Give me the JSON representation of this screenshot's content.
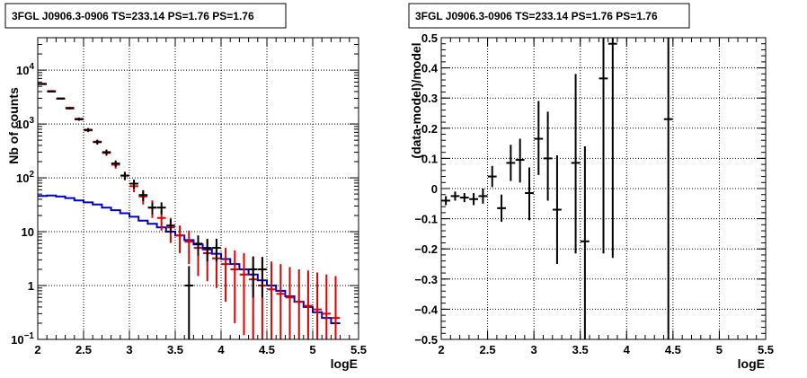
{
  "chart_data": [
    {
      "type": "step",
      "title": "3FGL J0906.3-0906 TS=233.14 PS=1.76 PS=1.76",
      "xlabel": "logE",
      "ylabel": "Nb of counts",
      "xlim": [
        2,
        5.5
      ],
      "ylim": [
        0.1,
        40000
      ],
      "yscale": "log",
      "x_ticks": [
        "2",
        "2.5",
        "3",
        "3.5",
        "4",
        "4.5",
        "5",
        "5.5"
      ],
      "y_ticks": [
        "10^{-1}",
        "1",
        "10",
        "10^{2}",
        "10^{3}",
        "10^{4}"
      ],
      "grid": true,
      "colors": {
        "data": "#000000",
        "model": "#dd0000",
        "component": "#0000cc"
      },
      "series": [
        {
          "role": "data",
          "style": "errorbar",
          "color": "#000000",
          "points": [
            {
              "x": 2.05,
              "y": 5500,
              "lo": 5350,
              "hi": 5650
            },
            {
              "x": 2.15,
              "y": 4000,
              "lo": 3870,
              "hi": 4130
            },
            {
              "x": 2.25,
              "y": 2950,
              "lo": 2840,
              "hi": 3060
            },
            {
              "x": 2.35,
              "y": 1950,
              "lo": 1860,
              "hi": 2040
            },
            {
              "x": 2.45,
              "y": 1220,
              "lo": 1150,
              "hi": 1290
            },
            {
              "x": 2.55,
              "y": 780,
              "lo": 720,
              "hi": 840
            },
            {
              "x": 2.65,
              "y": 460,
              "lo": 415,
              "hi": 505
            },
            {
              "x": 2.75,
              "y": 300,
              "lo": 265,
              "hi": 335
            },
            {
              "x": 2.85,
              "y": 185,
              "lo": 160,
              "hi": 210
            },
            {
              "x": 2.95,
              "y": 110,
              "lo": 92,
              "hi": 128
            },
            {
              "x": 3.05,
              "y": 78,
              "lo": 63,
              "hi": 93
            },
            {
              "x": 3.15,
              "y": 48,
              "lo": 37,
              "hi": 59
            },
            {
              "x": 3.25,
              "y": 28,
              "lo": 21,
              "hi": 35
            },
            {
              "x": 3.35,
              "y": 28,
              "lo": 21,
              "hi": 35
            },
            {
              "x": 3.45,
              "y": 13,
              "lo": 9.5,
              "hi": 17
            },
            {
              "x": 3.65,
              "y": 1,
              "lo": 0.1,
              "hi": 2.3
            },
            {
              "x": 3.75,
              "y": 6,
              "lo": 3.6,
              "hi": 8.5
            },
            {
              "x": 3.85,
              "y": 5,
              "lo": 2.8,
              "hi": 7.4
            },
            {
              "x": 3.95,
              "y": 5,
              "lo": 2.8,
              "hi": 7.4
            },
            {
              "x": 4.35,
              "y": 2,
              "lo": 0.6,
              "hi": 3.4
            },
            {
              "x": 4.45,
              "y": 2,
              "lo": 0.6,
              "hi": 3.4
            }
          ]
        },
        {
          "role": "model",
          "style": "errorbar",
          "color": "#dd0000",
          "points": [
            {
              "x": 2.05,
              "y": 5600,
              "lo": 5450,
              "hi": 5750
            },
            {
              "x": 2.15,
              "y": 4100,
              "lo": 3970,
              "hi": 4230
            },
            {
              "x": 2.25,
              "y": 3000,
              "lo": 2890,
              "hi": 3110
            },
            {
              "x": 2.35,
              "y": 2000,
              "lo": 1910,
              "hi": 2090
            },
            {
              "x": 2.45,
              "y": 1250,
              "lo": 1180,
              "hi": 1320
            },
            {
              "x": 2.55,
              "y": 760,
              "lo": 705,
              "hi": 815
            },
            {
              "x": 2.65,
              "y": 470,
              "lo": 427,
              "hi": 513
            },
            {
              "x": 2.75,
              "y": 290,
              "lo": 256,
              "hi": 324
            },
            {
              "x": 2.85,
              "y": 175,
              "lo": 149,
              "hi": 201
            },
            {
              "x": 2.95,
              "y": 110,
              "lo": 90,
              "hi": 130
            },
            {
              "x": 3.05,
              "y": 70,
              "lo": 54,
              "hi": 86
            },
            {
              "x": 3.15,
              "y": 45,
              "lo": 32,
              "hi": 58
            },
            {
              "x": 3.25,
              "y": 28,
              "lo": 18,
              "hi": 38
            },
            {
              "x": 3.35,
              "y": 18,
              "lo": 10.5,
              "hi": 25.5
            },
            {
              "x": 3.45,
              "y": 12,
              "lo": 6.2,
              "hi": 18
            },
            {
              "x": 3.55,
              "y": 8.5,
              "lo": 4,
              "hi": 13
            },
            {
              "x": 3.65,
              "y": 6.5,
              "lo": 2.5,
              "hi": 10.5
            },
            {
              "x": 3.75,
              "y": 5,
              "lo": 1.5,
              "hi": 8.5
            },
            {
              "x": 3.85,
              "y": 4,
              "lo": 1.2,
              "hi": 7
            },
            {
              "x": 3.95,
              "y": 3.2,
              "lo": 0.9,
              "hi": 6
            },
            {
              "x": 4.05,
              "y": 2.5,
              "lo": 0.5,
              "hi": 5
            },
            {
              "x": 4.15,
              "y": 2,
              "lo": 0.2,
              "hi": 4.5
            },
            {
              "x": 4.25,
              "y": 1.6,
              "lo": 0.12,
              "hi": 4
            },
            {
              "x": 4.35,
              "y": 1.3,
              "lo": 0.1,
              "hi": 3.5
            },
            {
              "x": 4.45,
              "y": 1,
              "lo": 0.1,
              "hi": 3
            },
            {
              "x": 4.55,
              "y": 0.85,
              "lo": 0.1,
              "hi": 2.8
            },
            {
              "x": 4.65,
              "y": 0.7,
              "lo": 0.1,
              "hi": 2.5
            },
            {
              "x": 4.75,
              "y": 0.6,
              "lo": 0.1,
              "hi": 2.2
            },
            {
              "x": 4.85,
              "y": 0.5,
              "lo": 0.1,
              "hi": 2.0
            },
            {
              "x": 4.95,
              "y": 0.42,
              "lo": 0.1,
              "hi": 1.9
            },
            {
              "x": 5.05,
              "y": 0.36,
              "lo": 0.1,
              "hi": 1.75
            },
            {
              "x": 5.15,
              "y": 0.3,
              "lo": 0.1,
              "hi": 1.6
            },
            {
              "x": 5.25,
              "y": 0.25,
              "lo": 0.1,
              "hi": 1.5
            }
          ]
        },
        {
          "role": "component",
          "style": "step",
          "color": "#0000cc",
          "edges": [
            2.0,
            2.1,
            2.2,
            2.3,
            2.4,
            2.5,
            2.6,
            2.7,
            2.8,
            2.9,
            3.0,
            3.1,
            3.2,
            3.3,
            3.4,
            3.5,
            3.6,
            3.7,
            3.8,
            3.9,
            4.0,
            4.1,
            4.2,
            4.3,
            4.4,
            4.5,
            4.6,
            4.7,
            4.8,
            4.9,
            5.0,
            5.1,
            5.2,
            5.3
          ],
          "values": [
            46,
            47,
            45,
            42,
            38,
            35,
            32,
            28,
            25,
            22,
            19,
            16,
            14,
            12,
            10,
            8.5,
            7,
            5.8,
            4.7,
            3.9,
            3.1,
            2.5,
            2.0,
            1.6,
            1.25,
            1.0,
            0.8,
            0.63,
            0.5,
            0.4,
            0.32,
            0.25,
            0.2
          ]
        }
      ]
    },
    {
      "type": "scatter",
      "title": "3FGL J0906.3-0906 TS=233.14 PS=1.76 PS=1.76",
      "xlabel": "logE",
      "ylabel": "(data-model)/model",
      "xlim": [
        2,
        5.5
      ],
      "ylim": [
        -0.5,
        0.5
      ],
      "x_ticks": [
        "2",
        "2.5",
        "3",
        "3.5",
        "4",
        "4.5",
        "5",
        "5.5"
      ],
      "y_ticks": [
        "−0.5",
        "−0.4",
        "−0.3",
        "−0.2",
        "−0.1",
        "0",
        "0.1",
        "0.2",
        "0.3",
        "0.4",
        "0.5"
      ],
      "grid": true,
      "points": [
        {
          "x": 2.05,
          "y": -0.04,
          "lo": -0.055,
          "hi": -0.025
        },
        {
          "x": 2.15,
          "y": -0.025,
          "lo": -0.04,
          "hi": -0.01
        },
        {
          "x": 2.25,
          "y": -0.03,
          "lo": -0.045,
          "hi": -0.015
        },
        {
          "x": 2.35,
          "y": -0.035,
          "lo": -0.055,
          "hi": -0.015
        },
        {
          "x": 2.45,
          "y": -0.025,
          "lo": -0.05,
          "hi": 0.0
        },
        {
          "x": 2.55,
          "y": 0.04,
          "lo": 0.005,
          "hi": 0.075
        },
        {
          "x": 2.65,
          "y": -0.065,
          "lo": -0.11,
          "hi": -0.02
        },
        {
          "x": 2.75,
          "y": 0.085,
          "lo": 0.025,
          "hi": 0.145
        },
        {
          "x": 2.85,
          "y": 0.095,
          "lo": 0.02,
          "hi": 0.165
        },
        {
          "x": 2.95,
          "y": -0.015,
          "lo": -0.105,
          "hi": 0.07
        },
        {
          "x": 3.05,
          "y": 0.165,
          "lo": 0.045,
          "hi": 0.29
        },
        {
          "x": 3.15,
          "y": 0.1,
          "lo": -0.04,
          "hi": 0.255
        },
        {
          "x": 3.25,
          "y": -0.07,
          "lo": -0.25,
          "hi": 0.11
        },
        {
          "x": 3.45,
          "y": 0.085,
          "lo": -0.215,
          "hi": 0.38
        },
        {
          "x": 3.55,
          "y": -0.175,
          "lo": -0.5,
          "hi": 0.14
        },
        {
          "x": 3.75,
          "y": 0.365,
          "lo": -0.215,
          "hi": 0.5
        },
        {
          "x": 3.85,
          "y": 0.48,
          "lo": -0.23,
          "hi": 0.5
        },
        {
          "x": 4.45,
          "y": 0.23,
          "lo": -0.5,
          "hi": 0.5
        }
      ]
    }
  ]
}
